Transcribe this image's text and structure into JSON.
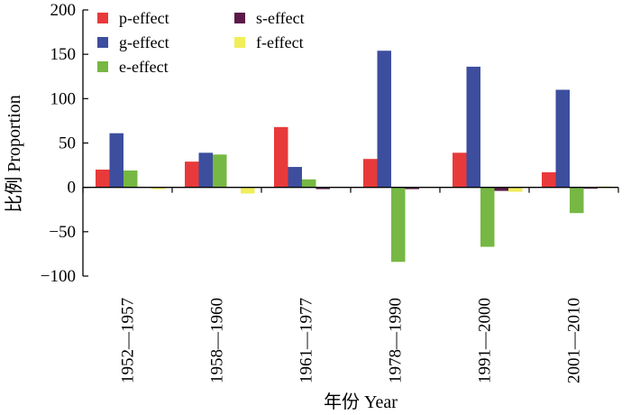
{
  "chart_data": {
    "type": "bar",
    "xlabel": "年份 Year",
    "ylabel": "比例 Proportion",
    "ylim": [
      -100,
      200
    ],
    "yticks": [
      -100,
      -50,
      0,
      50,
      100,
      150,
      200
    ],
    "grid": false,
    "legend_position": "top-left",
    "categories": [
      "1952—1957",
      "1958—1960",
      "1961—1977",
      "1978—1990",
      "1991—2000",
      "2001—2010"
    ],
    "series": [
      {
        "name": "p-effect",
        "color": "#e83a3a",
        "values": [
          20,
          29,
          68,
          32,
          39,
          17
        ]
      },
      {
        "name": "g-effect",
        "color": "#3d4e9e",
        "values": [
          61,
          39,
          23,
          154,
          136,
          110
        ]
      },
      {
        "name": "e-effect",
        "color": "#76b843",
        "values": [
          19,
          37,
          9,
          -84,
          -67,
          -29
        ]
      },
      {
        "name": "s-effect",
        "color": "#5b1a4a",
        "values": [
          0,
          0,
          -2,
          -2,
          -4,
          -1
        ]
      },
      {
        "name": "f-effect",
        "color": "#f0ee5a",
        "values": [
          -2,
          -7,
          0,
          0,
          -5,
          1
        ]
      }
    ]
  }
}
